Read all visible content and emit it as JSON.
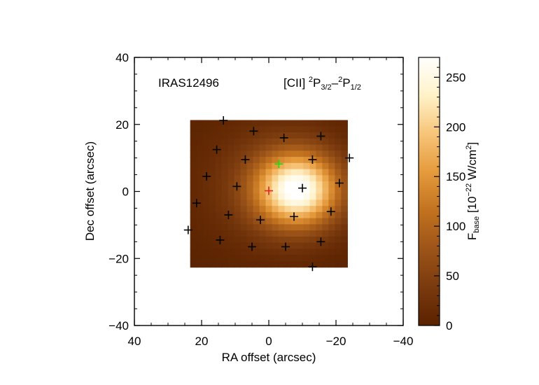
{
  "chart_data": {
    "type": "heatmap",
    "object_label": "IRAS12496",
    "line_label": {
      "prefix": "[CII] ",
      "sup1": "2",
      "p1": "P",
      "sub1": "3/2",
      "dash": "–",
      "sup2": "2",
      "p2": "P",
      "sub2": "1/2"
    },
    "xlabel": "RA offset (arcsec)",
    "ylabel": "Dec offset (arcsec)",
    "xlim": [
      40,
      -40
    ],
    "ylim": [
      -40,
      40
    ],
    "x_ticks": [
      40,
      20,
      0,
      -20,
      -40
    ],
    "x_tick_labels": [
      "40",
      "20",
      "0",
      "−20",
      "−40"
    ],
    "y_ticks": [
      40,
      20,
      0,
      -20,
      -40
    ],
    "y_tick_labels": [
      "40",
      "20",
      "0",
      "−20",
      "−40"
    ],
    "map_extent": {
      "x": [
        23.4,
        -23.4
      ],
      "y": [
        -22.6,
        21.3
      ]
    },
    "peak_flux": 270,
    "peak_position": [
      -8.5,
      0.5
    ],
    "colorbar": {
      "range": [
        0,
        270
      ],
      "ticks": [
        0,
        50,
        100,
        150,
        200,
        250
      ],
      "tick_labels": [
        "0",
        "50",
        "100",
        "150",
        "200",
        "250"
      ],
      "label": {
        "f": "F",
        "sub": "base",
        "open": " [10",
        "exp": "−22",
        "unit": " W/cm",
        "sq": "2",
        "close": "]"
      }
    },
    "spaxel_markers": [
      {
        "x": 13.5,
        "y": 21.2
      },
      {
        "x": 4.5,
        "y": 18.0
      },
      {
        "x": -4.5,
        "y": 16.0
      },
      {
        "x": -15.5,
        "y": 16.5
      },
      {
        "x": 15.5,
        "y": 12.5
      },
      {
        "x": 7.0,
        "y": 9.5
      },
      {
        "x": -13.0,
        "y": 9.5
      },
      {
        "x": -24.0,
        "y": 10.0
      },
      {
        "x": 18.5,
        "y": 4.5
      },
      {
        "x": 9.5,
        "y": 1.5
      },
      {
        "x": -10.0,
        "y": 1.0
      },
      {
        "x": -21.0,
        "y": 2.5
      },
      {
        "x": 21.5,
        "y": -3.5
      },
      {
        "x": 12.0,
        "y": -7.0
      },
      {
        "x": 2.5,
        "y": -8.5
      },
      {
        "x": -7.5,
        "y": -7.5
      },
      {
        "x": -18.5,
        "y": -6.0
      },
      {
        "x": 24.0,
        "y": -11.5
      },
      {
        "x": 14.5,
        "y": -14.5
      },
      {
        "x": 5.0,
        "y": -16.5
      },
      {
        "x": -5.0,
        "y": -16.5
      },
      {
        "x": -15.5,
        "y": -15.0
      },
      {
        "x": -13.0,
        "y": -22.5
      }
    ],
    "center_marker": {
      "x": 0.0,
      "y": 0.2,
      "color": "#e8201c"
    },
    "highlight_marker": {
      "x": -3.0,
      "y": 8.2,
      "color": "#10e010"
    },
    "marker_color": "#000000",
    "colormap": [
      "#5a2200",
      "#7a3a0e",
      "#9c5418",
      "#c2721f",
      "#e59a3c",
      "#f7c478",
      "#fff2c8",
      "#ffffff"
    ]
  }
}
